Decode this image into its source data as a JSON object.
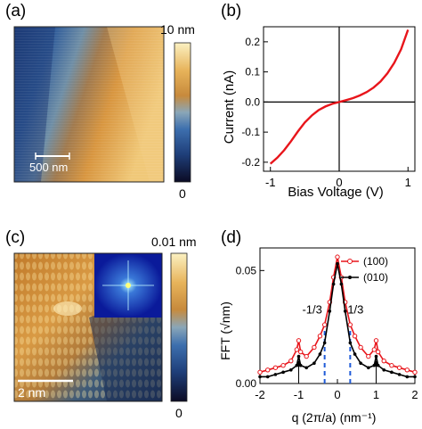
{
  "panels": {
    "a": {
      "label": "(a)",
      "colorbar": {
        "max_label": "10 nm",
        "min_label": "0",
        "colors": [
          "#0b0b24",
          "#1f3f7a",
          "#3d6fae",
          "#8aa6b8",
          "#c78a3c",
          "#e7b35a",
          "#fbf1c2"
        ]
      },
      "scalebar_label": "500 nm"
    },
    "b": {
      "label": "(b)",
      "xlabel": "Bias Voltage (V)",
      "ylabel": "Current (nA)"
    },
    "c": {
      "label": "(c)",
      "colorbar": {
        "max_label": "0.01 nm",
        "min_label": "0"
      },
      "scalebar_label": "2 nm"
    },
    "d": {
      "label": "(d)",
      "xlabel": "q (2π/a) (nm⁻¹)",
      "ylabel": "FFT (√nm)",
      "annotations": [
        "-1/3",
        "1/3"
      ],
      "legend": [
        "(100)",
        "(010)"
      ]
    }
  },
  "chart_data": [
    {
      "panel": "b",
      "type": "line",
      "xlabel": "Bias Voltage (V)",
      "ylabel": "Current (nA)",
      "xlim": [
        -1.1,
        1.1
      ],
      "ylim": [
        -0.23,
        0.25
      ],
      "xticks": [
        "-1",
        "0",
        "1"
      ],
      "yticks": [
        "-0.2",
        "-0.1",
        "0.0",
        "0.1",
        "0.2"
      ],
      "color": "#e8151b",
      "series": [
        {
          "x": [
            -1.0,
            -0.9,
            -0.8,
            -0.7,
            -0.6,
            -0.5,
            -0.4,
            -0.3,
            -0.2,
            -0.1,
            0.0,
            0.1,
            0.2,
            0.3,
            0.4,
            0.5,
            0.6,
            0.7,
            0.8,
            0.9,
            1.0
          ],
          "y": [
            -0.205,
            -0.185,
            -0.16,
            -0.13,
            -0.098,
            -0.068,
            -0.045,
            -0.027,
            -0.015,
            -0.006,
            0.0,
            0.006,
            0.013,
            0.022,
            0.033,
            0.048,
            0.068,
            0.095,
            0.13,
            0.175,
            0.24
          ]
        }
      ]
    },
    {
      "panel": "d",
      "type": "line",
      "xlabel": "q (2π/a) (nm⁻¹)",
      "ylabel": "FFT (√nm)",
      "xlim": [
        -2,
        2
      ],
      "ylim": [
        0,
        0.06
      ],
      "xticks": [
        "-2",
        "-1",
        "0",
        "1",
        "2"
      ],
      "yticks": [
        "0.00",
        "0.05"
      ],
      "legend_position": "top-right",
      "series": [
        {
          "name": "(100)",
          "color": "#e8151b",
          "x": [
            -2.0,
            -1.8,
            -1.6,
            -1.4,
            -1.2,
            -1.05,
            -1.0,
            -0.95,
            -0.8,
            -0.6,
            -0.45,
            -0.33,
            -0.2,
            -0.1,
            0.0,
            0.1,
            0.2,
            0.33,
            0.45,
            0.6,
            0.8,
            0.95,
            1.0,
            1.05,
            1.2,
            1.4,
            1.6,
            1.8,
            2.0
          ],
          "y": [
            0.005,
            0.006,
            0.007,
            0.008,
            0.01,
            0.015,
            0.019,
            0.014,
            0.012,
            0.016,
            0.021,
            0.026,
            0.036,
            0.047,
            0.056,
            0.047,
            0.036,
            0.026,
            0.021,
            0.016,
            0.012,
            0.015,
            0.019,
            0.014,
            0.01,
            0.008,
            0.007,
            0.006,
            0.005
          ]
        },
        {
          "name": "(010)",
          "color": "#000000",
          "x": [
            -2.0,
            -1.8,
            -1.6,
            -1.4,
            -1.2,
            -1.05,
            -1.0,
            -0.95,
            -0.8,
            -0.6,
            -0.45,
            -0.33,
            -0.2,
            -0.1,
            0.0,
            0.1,
            0.2,
            0.33,
            0.45,
            0.6,
            0.8,
            0.95,
            1.0,
            1.05,
            1.2,
            1.4,
            1.6,
            1.8,
            2.0
          ],
          "y": [
            0.003,
            0.003,
            0.004,
            0.005,
            0.006,
            0.008,
            0.012,
            0.008,
            0.007,
            0.009,
            0.013,
            0.018,
            0.032,
            0.044,
            0.053,
            0.044,
            0.032,
            0.018,
            0.013,
            0.009,
            0.007,
            0.008,
            0.012,
            0.008,
            0.006,
            0.005,
            0.004,
            0.003,
            0.003
          ]
        }
      ],
      "markers": [
        {
          "x": -1.0,
          "y": 0.01
        },
        {
          "x": 1.0,
          "y": 0.01
        }
      ],
      "dashed_lines": [
        {
          "x": -0.33,
          "y": 0.026
        },
        {
          "x": 0.33,
          "y": 0.026
        }
      ]
    }
  ]
}
